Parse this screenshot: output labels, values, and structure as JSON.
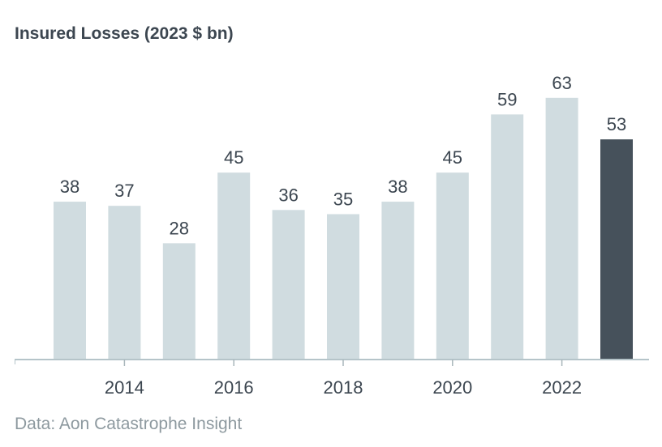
{
  "chart_data": {
    "type": "bar",
    "title": "Insured Losses (2023 $ bn)",
    "source": "Data: Aon Catastrophe Insight",
    "categories": [
      "2013",
      "2014",
      "2015",
      "2016",
      "2017",
      "2018",
      "2019",
      "2020",
      "2021",
      "2022",
      "2023"
    ],
    "values": [
      38,
      37,
      28,
      45,
      36,
      35,
      38,
      45,
      59,
      63,
      53
    ],
    "x_tick_labels": [
      "2014",
      "2016",
      "2018",
      "2020",
      "2022"
    ],
    "ylim": [
      0,
      65
    ],
    "grid": false,
    "colors": {
      "bar": "#d0dce0",
      "highlight": "#46515b",
      "axis": "#b5c4c9"
    },
    "highlighted_category": "2023"
  }
}
